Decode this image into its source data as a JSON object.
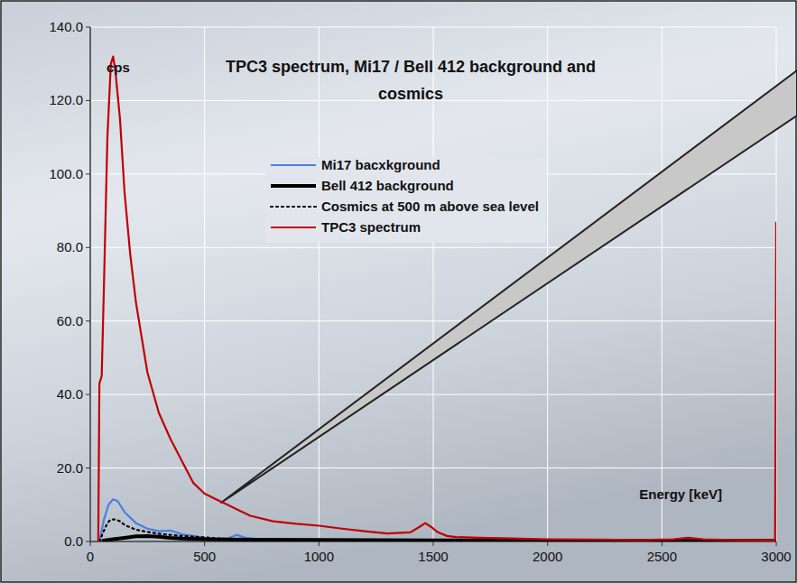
{
  "chart_data": {
    "type": "line",
    "title": "TPC3 spectrum, Mi17 / Bell 412 background and cosmics",
    "x_label": "Energy [keV]",
    "y_label": "cps",
    "xlim": [
      0,
      3000
    ],
    "ylim": [
      0,
      140
    ],
    "xticks": [
      0,
      500,
      1000,
      1500,
      2000,
      2500,
      3000
    ],
    "yticks": [
      {
        "value": 0,
        "label": "0.0"
      },
      {
        "value": 20,
        "label": "20.0"
      },
      {
        "value": 40,
        "label": "40.0"
      },
      {
        "value": 60,
        "label": "60.0"
      },
      {
        "value": 80,
        "label": "80.0"
      },
      {
        "value": 100,
        "label": "100.0"
      },
      {
        "value": 120,
        "label": "120.0"
      },
      {
        "value": 140,
        "label": "140.0"
      }
    ],
    "grid": true,
    "legend": "top",
    "series": [
      {
        "name": "Mi17 bacxkground",
        "color": "#4a7fe0",
        "line_style": "solid",
        "x": [
          40,
          60,
          80,
          100,
          120,
          150,
          200,
          250,
          300,
          350,
          400,
          450,
          500,
          550,
          600,
          640,
          680,
          750,
          850,
          1000,
          1500,
          2000,
          2500,
          3000
        ],
        "values": [
          0,
          6,
          10,
          11.5,
          11,
          8,
          5,
          3.5,
          2.8,
          3,
          2,
          1.5,
          1,
          0.8,
          0.8,
          1.8,
          1,
          0.5,
          0.3,
          0.2,
          0.15,
          0.1,
          0.1,
          0.1
        ]
      },
      {
        "name": "Bell 412 background",
        "color": "#000000",
        "line_style": "solid",
        "x": [
          50,
          100,
          150,
          200,
          250,
          300,
          350,
          400,
          500,
          700,
          1000,
          1500,
          2000,
          2500,
          3000
        ],
        "values": [
          0.2,
          0.6,
          1.0,
          1.4,
          1.5,
          1.3,
          1.0,
          0.8,
          0.6,
          0.5,
          0.4,
          0.3,
          0.25,
          0.2,
          0.2
        ]
      },
      {
        "name": "Cosmics at 500 m above sea level",
        "color": "#000000",
        "line_style": "dotted",
        "x": [
          40,
          60,
          75,
          90,
          110,
          130,
          150,
          200,
          250,
          300,
          350,
          400,
          450,
          500,
          550,
          600
        ],
        "values": [
          0,
          3,
          5,
          6,
          6,
          5.5,
          4.5,
          3.2,
          2.6,
          2.1,
          1.8,
          1.5,
          1.3,
          1.1,
          0.9,
          0.7
        ]
      },
      {
        "name": "TPC3 spectrum",
        "color": "#c00000",
        "line_style": "solid",
        "x": [
          35,
          40,
          50,
          60,
          75,
          90,
          100,
          110,
          130,
          150,
          175,
          200,
          250,
          300,
          350,
          400,
          450,
          500,
          550,
          600,
          650,
          700,
          800,
          900,
          1000,
          1100,
          1200,
          1300,
          1400,
          1440,
          1465,
          1490,
          1520,
          1560,
          1600,
          1700,
          1800,
          2000,
          2200,
          2400,
          2550,
          2615,
          2680,
          2800,
          2995,
          3000
        ],
        "values": [
          0,
          43,
          45,
          70,
          110,
          130,
          132,
          128,
          115,
          95,
          78,
          65,
          46,
          35,
          28,
          22,
          16,
          13,
          11.5,
          10,
          8.5,
          7,
          5.5,
          4.8,
          4.3,
          3.5,
          2.8,
          2.2,
          2.5,
          4,
          5,
          4,
          2.5,
          1.5,
          1.2,
          1,
          0.9,
          0.6,
          0.5,
          0.4,
          0.6,
          1,
          0.6,
          0.4,
          0.3,
          87
        ]
      }
    ]
  }
}
